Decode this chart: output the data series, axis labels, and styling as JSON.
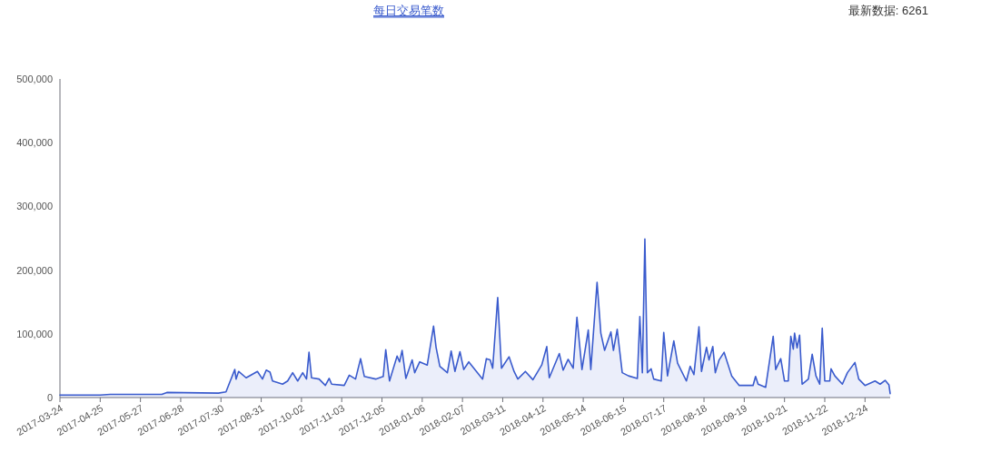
{
  "chart_data": {
    "type": "area",
    "title": "每日交易笔数",
    "annotations": [
      "最新数据: 6261"
    ],
    "x": [
      "2017-03-24",
      "2017-04-25",
      "2017-05-03",
      "2017-06-13",
      "2017-06-17",
      "2017-07-28",
      "2017-08-03",
      "2017-08-10",
      "2017-08-11",
      "2017-08-13",
      "2017-08-19",
      "2017-08-28",
      "2017-09-01",
      "2017-09-04",
      "2017-09-07",
      "2017-09-09",
      "2017-09-17",
      "2017-09-21",
      "2017-09-25",
      "2017-09-29",
      "2017-10-03",
      "2017-10-06",
      "2017-10-08",
      "2017-10-10",
      "2017-10-16",
      "2017-10-21",
      "2017-10-24",
      "2017-10-26",
      "2017-11-05",
      "2017-11-09",
      "2017-11-14",
      "2017-11-18",
      "2017-11-21",
      "2017-11-30",
      "2017-12-03",
      "2017-12-06",
      "2017-12-08",
      "2017-12-11",
      "2017-12-17",
      "2017-12-19",
      "2017-12-21",
      "2017-12-24",
      "2017-12-29",
      "2017-12-31",
      "2018-01-04",
      "2018-01-10",
      "2018-01-15",
      "2018-01-17",
      "2018-01-20",
      "2018-01-26",
      "2018-01-29",
      "2018-02-01",
      "2018-02-05",
      "2018-02-08",
      "2018-02-12",
      "2018-02-23",
      "2018-02-26",
      "2018-03-01",
      "2018-03-03",
      "2018-03-07",
      "2018-03-10",
      "2018-03-16",
      "2018-03-20",
      "2018-03-23",
      "2018-03-29",
      "2018-04-04",
      "2018-04-11",
      "2018-04-15",
      "2018-04-17",
      "2018-04-25",
      "2018-04-28",
      "2018-05-02",
      "2018-05-06",
      "2018-05-09",
      "2018-05-13",
      "2018-05-18",
      "2018-05-20",
      "2018-05-25",
      "2018-05-28",
      "2018-05-31",
      "2018-06-05",
      "2018-06-07",
      "2018-06-10",
      "2018-06-14",
      "2018-06-19",
      "2018-06-26",
      "2018-06-28",
      "2018-06-30",
      "2018-07-02",
      "2018-07-04",
      "2018-07-07",
      "2018-07-09",
      "2018-07-15",
      "2018-07-17",
      "2018-07-20",
      "2018-07-25",
      "2018-07-28",
      "2018-08-04",
      "2018-08-07",
      "2018-08-10",
      "2018-08-14",
      "2018-08-16",
      "2018-08-20",
      "2018-08-22",
      "2018-08-25",
      "2018-08-27",
      "2018-08-30",
      "2018-09-03",
      "2018-09-09",
      "2018-09-15",
      "2018-09-26",
      "2018-09-28",
      "2018-09-30",
      "2018-10-06",
      "2018-10-12",
      "2018-10-14",
      "2018-10-18",
      "2018-10-21",
      "2018-10-24",
      "2018-10-26",
      "2018-10-28",
      "2018-10-29",
      "2018-10-31",
      "2018-11-02",
      "2018-11-04",
      "2018-11-09",
      "2018-11-12",
      "2018-11-15",
      "2018-11-18",
      "2018-11-20",
      "2018-11-22",
      "2018-11-26",
      "2018-11-27",
      "2018-11-30",
      "2018-12-06",
      "2018-12-10",
      "2018-12-16",
      "2018-12-19",
      "2018-12-24",
      "2019-01-01",
      "2019-01-05",
      "2019-01-09",
      "2019-01-12",
      "2019-01-13"
    ],
    "series": [
      {
        "color": "#3a5bcd",
        "values": [
          4000,
          4000,
          5000,
          5000,
          8000,
          7000,
          9000,
          44000,
          29000,
          41000,
          31000,
          41000,
          29000,
          43000,
          40000,
          26000,
          21000,
          26000,
          39000,
          26000,
          39000,
          29000,
          71000,
          31000,
          29000,
          19000,
          30000,
          21000,
          19000,
          35000,
          29000,
          61000,
          33000,
          29000,
          31000,
          33000,
          75000,
          26000,
          65000,
          56000,
          74000,
          30000,
          59000,
          39000,
          56000,
          51000,
          112000,
          79000,
          49000,
          39000,
          73000,
          41000,
          72000,
          44000,
          56000,
          29000,
          61000,
          59000,
          46000,
          157000,
          46000,
          64000,
          41000,
          29000,
          41000,
          28000,
          51000,
          80000,
          31000,
          69000,
          43000,
          60000,
          46000,
          126000,
          44000,
          106000,
          44000,
          181000,
          101000,
          74000,
          103000,
          74000,
          107000,
          39000,
          34000,
          30000,
          127000,
          39000,
          249000,
          39000,
          45000,
          29000,
          26000,
          102000,
          34000,
          89000,
          54000,
          26000,
          49000,
          36000,
          111000,
          41000,
          79000,
          59000,
          80000,
          39000,
          59000,
          71000,
          34000,
          19000,
          19000,
          33000,
          21000,
          16000,
          96000,
          44000,
          61000,
          26000,
          26000,
          96000,
          76000,
          101000,
          78000,
          98000,
          21000,
          29000,
          68000,
          34000,
          21000,
          109000,
          26000,
          26000,
          45000,
          34000,
          21000,
          39000,
          55000,
          29000,
          19000,
          26000,
          21000,
          27000,
          20000,
          6261
        ]
      }
    ],
    "xlim": [
      "2017-03-24",
      "2019-01-13"
    ],
    "xticks": [
      "2017-03-24",
      "2017-04-25",
      "2017-05-27",
      "2017-06-28",
      "2017-07-30",
      "2017-08-31",
      "2017-10-02",
      "2017-11-03",
      "2017-12-05",
      "2018-01-06",
      "2018-02-07",
      "2018-03-11",
      "2018-04-12",
      "2018-05-14",
      "2018-06-15",
      "2018-07-17",
      "2018-08-18",
      "2018-09-19",
      "2018-10-21",
      "2018-11-22",
      "2018-12-24"
    ],
    "ylim": [
      0,
      500000
    ],
    "yticks": [
      0,
      {
        "value": 100000,
        "label": "100,000"
      },
      {
        "value": 200000,
        "label": "200,000"
      },
      {
        "value": 300000,
        "label": "300,000"
      },
      {
        "value": 400000,
        "label": "400,000"
      },
      {
        "value": 500000,
        "label": "500,000"
      }
    ],
    "grid": false
  }
}
